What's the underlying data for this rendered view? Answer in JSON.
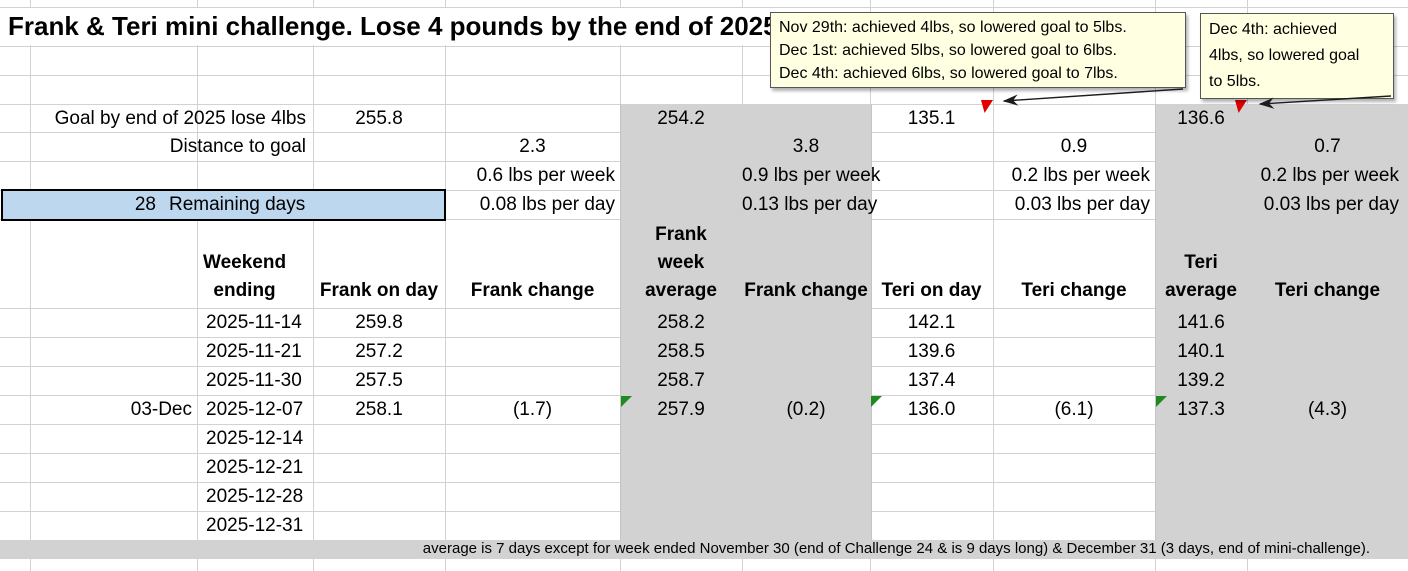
{
  "title": "Frank & Teri mini challenge. Lose 4 pounds by the end of 2025",
  "notes": {
    "note1": {
      "lines": [
        "Nov 29th: achieved 4lbs, so lowered goal to 5lbs.",
        "Dec 1st: achieved 5lbs, so lowered goal to 6lbs.",
        "Dec 4th: achieved 6lbs, so lowered goal to 7lbs."
      ],
      "anchor": "teri-on-day-goal-cell"
    },
    "note2": {
      "lines": [
        "Dec 4th: achieved",
        "4lbs, so lowered goal",
        "to 5lbs."
      ],
      "anchor": "teri-average-goal-cell"
    }
  },
  "summary": {
    "goal_label": "Goal by end of 2025 lose 4lbs",
    "distance_label": "Distance to goal",
    "remaining_days_value": "28",
    "remaining_days_label": "Remaining days",
    "frank": {
      "goal": "255.8",
      "distance": "2.3",
      "per_week": "0.6 lbs per week",
      "per_day": "0.08 lbs per day"
    },
    "frank_avg": {
      "goal": "254.2",
      "distance": "3.8",
      "per_week": "0.9 lbs per week",
      "per_day": "0.13 lbs per day"
    },
    "teri": {
      "goal": "135.1",
      "distance": "0.9",
      "per_week": "0.2 lbs per week",
      "per_day": "0.03 lbs per day"
    },
    "teri_avg": {
      "goal": "136.6",
      "distance": "0.7",
      "per_week": "0.2 lbs per week",
      "per_day": "0.03 lbs per day"
    }
  },
  "table": {
    "headers": {
      "weekend_ending": [
        "Weekend",
        "ending"
      ],
      "frank_on_day": "Frank on day",
      "frank_change": "Frank change",
      "frank_week_average": [
        "Frank",
        "week",
        "average"
      ],
      "frank_change_avg": "Frank change",
      "teri_on_day": "Teri on day",
      "teri_change": "Teri change",
      "teri_average": [
        "Teri",
        "average"
      ],
      "teri_change_avg": "Teri change"
    },
    "rows": [
      {
        "day_label": "",
        "date": "2025-11-14",
        "frank_on_day": "259.8",
        "frank_change": "",
        "frank_week_avg": "258.2",
        "frank_avg_change": "",
        "teri_on_day": "142.1",
        "teri_change": "",
        "teri_avg": "141.6",
        "teri_avg_change": "",
        "error_indicators": []
      },
      {
        "day_label": "",
        "date": "2025-11-21",
        "frank_on_day": "257.2",
        "frank_change": "",
        "frank_week_avg": "258.5",
        "frank_avg_change": "",
        "teri_on_day": "139.6",
        "teri_change": "",
        "teri_avg": "140.1",
        "teri_avg_change": "",
        "error_indicators": []
      },
      {
        "day_label": "",
        "date": "2025-11-30",
        "frank_on_day": "257.5",
        "frank_change": "",
        "frank_week_avg": "258.7",
        "frank_avg_change": "",
        "teri_on_day": "137.4",
        "teri_change": "",
        "teri_avg": "139.2",
        "teri_avg_change": "",
        "error_indicators": []
      },
      {
        "day_label": "03-Dec",
        "date": "2025-12-07",
        "frank_on_day": "258.1",
        "frank_change": "(1.7)",
        "frank_week_avg": "257.9",
        "frank_avg_change": "(0.2)",
        "teri_on_day": "136.0",
        "teri_change": "(6.1)",
        "teri_avg": "137.3",
        "teri_avg_change": "(4.3)",
        "error_indicators": [
          "frank_week_avg",
          "teri_on_day",
          "teri_avg"
        ]
      },
      {
        "day_label": "",
        "date": "2025-12-14",
        "frank_on_day": "",
        "frank_change": "",
        "frank_week_avg": "",
        "frank_avg_change": "",
        "teri_on_day": "",
        "teri_change": "",
        "teri_avg": "",
        "teri_avg_change": "",
        "error_indicators": []
      },
      {
        "day_label": "",
        "date": "2025-12-21",
        "frank_on_day": "",
        "frank_change": "",
        "frank_week_avg": "",
        "frank_avg_change": "",
        "teri_on_day": "",
        "teri_change": "",
        "teri_avg": "",
        "teri_avg_change": "",
        "error_indicators": []
      },
      {
        "day_label": "",
        "date": "2025-12-28",
        "frank_on_day": "",
        "frank_change": "",
        "frank_week_avg": "",
        "frank_avg_change": "",
        "teri_on_day": "",
        "teri_change": "",
        "teri_avg": "",
        "teri_avg_change": "",
        "error_indicators": []
      },
      {
        "day_label": "",
        "date": "2025-12-31",
        "frank_on_day": "",
        "frank_change": "",
        "frank_week_avg": "",
        "frank_avg_change": "",
        "teri_on_day": "",
        "teri_change": "",
        "teri_avg": "",
        "teri_avg_change": "",
        "error_indicators": []
      }
    ]
  },
  "footnote": "average is 7 days except for week ended November 30 (end of Challenge 24 & is 9 days long) & December 31 (3 days, end of mini-challenge).",
  "colors": {
    "highlight_blue": "#bdd7ee",
    "band_gray": "#d2d2d2",
    "note_yellow": "#ffffe1",
    "comment_red": "#e00000",
    "error_green": "#1f8a1f"
  }
}
